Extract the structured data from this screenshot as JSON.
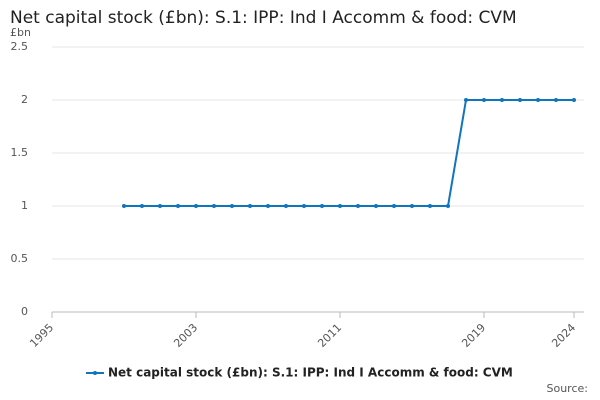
{
  "chart_data": {
    "type": "line",
    "title": "Net capital stock (£bn): S.1: IPP: Ind I Accomm & food: CVM",
    "y_unit": "£bn",
    "source": "Source:",
    "x": [
      1999,
      2000,
      2001,
      2002,
      2003,
      2004,
      2005,
      2006,
      2007,
      2008,
      2009,
      2010,
      2011,
      2012,
      2013,
      2014,
      2015,
      2016,
      2017,
      2018,
      2019,
      2020,
      2021,
      2022,
      2023,
      2024
    ],
    "series": [
      {
        "name": "Net capital stock (£bn): S.1: IPP: Ind I Accomm & food: CVM",
        "color": "#0f75bc",
        "values": [
          1,
          1,
          1,
          1,
          1,
          1,
          1,
          1,
          1,
          1,
          1,
          1,
          1,
          1,
          1,
          1,
          1,
          1,
          1,
          2,
          2,
          2,
          2,
          2,
          2,
          2
        ]
      }
    ],
    "xlim": [
      1995,
      2024
    ],
    "xticks": [
      1995,
      2003,
      2011,
      2019,
      2024
    ],
    "ylim": [
      0,
      2.5
    ],
    "yticks": [
      0,
      0.5,
      1,
      1.5,
      2,
      2.5
    ],
    "grid": true,
    "legend": "bottom"
  }
}
